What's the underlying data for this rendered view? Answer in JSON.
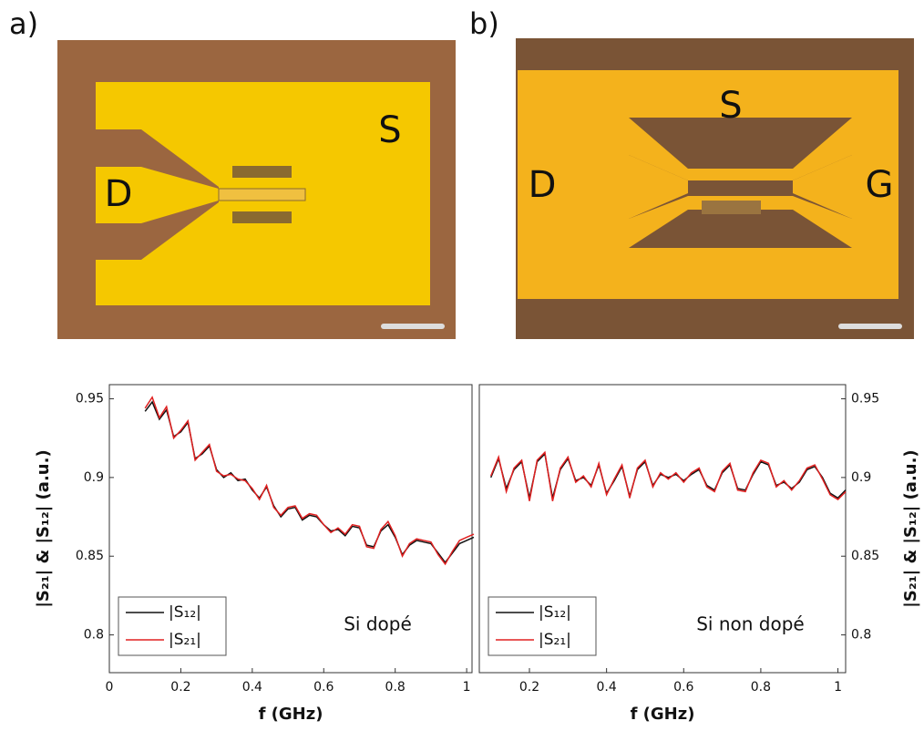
{
  "labels": {
    "panel_a": "a)",
    "panel_b": "b)",
    "a_source": "S",
    "a_drain": "D",
    "b_source": "S",
    "b_drain": "D",
    "b_gate": "G"
  },
  "chart_data": [
    {
      "type": "line",
      "annotation": "Si dopé",
      "xlabel": "f (GHz)",
      "ylabel": "|S₂₁| & |S₁₂| (a.u.)",
      "xlim": [
        0,
        1.015
      ],
      "ylim": [
        0.776,
        0.959
      ],
      "xticks": [
        0,
        0.2,
        0.4,
        0.6,
        0.8,
        1
      ],
      "yticks": [
        0.8,
        0.85,
        0.9,
        0.95
      ],
      "y_axis_side": "left",
      "legend": "lower left",
      "x": [
        0.1,
        0.12,
        0.14,
        0.16,
        0.18,
        0.2,
        0.22,
        0.24,
        0.26,
        0.28,
        0.3,
        0.32,
        0.34,
        0.36,
        0.38,
        0.4,
        0.42,
        0.44,
        0.46,
        0.48,
        0.5,
        0.52,
        0.54,
        0.56,
        0.58,
        0.6,
        0.62,
        0.64,
        0.66,
        0.68,
        0.7,
        0.72,
        0.74,
        0.76,
        0.78,
        0.8,
        0.82,
        0.84,
        0.86,
        0.88,
        0.9,
        0.92,
        0.94,
        0.96,
        0.98,
        1.0,
        1.02
      ],
      "series": [
        {
          "name": "|S₁₂|",
          "color": "#111111",
          "values": [
            0.942,
            0.948,
            0.937,
            0.943,
            0.926,
            0.929,
            0.935,
            0.912,
            0.915,
            0.92,
            0.905,
            0.9,
            0.903,
            0.898,
            0.899,
            0.892,
            0.887,
            0.894,
            0.882,
            0.875,
            0.88,
            0.881,
            0.873,
            0.876,
            0.875,
            0.87,
            0.866,
            0.867,
            0.863,
            0.869,
            0.868,
            0.857,
            0.856,
            0.866,
            0.87,
            0.862,
            0.851,
            0.857,
            0.86,
            0.859,
            0.858,
            0.852,
            0.846,
            0.852,
            0.858,
            0.86,
            0.862
          ]
        },
        {
          "name": "|S₂₁|",
          "color": "#e02020",
          "values": [
            0.944,
            0.951,
            0.938,
            0.945,
            0.925,
            0.93,
            0.936,
            0.911,
            0.916,
            0.921,
            0.904,
            0.901,
            0.902,
            0.899,
            0.898,
            0.893,
            0.886,
            0.895,
            0.881,
            0.876,
            0.881,
            0.882,
            0.874,
            0.877,
            0.876,
            0.87,
            0.865,
            0.868,
            0.864,
            0.87,
            0.869,
            0.856,
            0.855,
            0.867,
            0.872,
            0.863,
            0.85,
            0.858,
            0.861,
            0.86,
            0.859,
            0.851,
            0.845,
            0.853,
            0.86,
            0.862,
            0.864
          ]
        }
      ]
    },
    {
      "type": "line",
      "annotation": "Si non dopé",
      "xlabel": "f (GHz)",
      "ylabel": "|S₂₁| & |S₁₂| (a.u.)",
      "xlim": [
        0.07,
        1.02
      ],
      "ylim": [
        0.776,
        0.959
      ],
      "xticks": [
        0.2,
        0.4,
        0.6,
        0.8,
        1
      ],
      "yticks": [
        0.8,
        0.85,
        0.9,
        0.95
      ],
      "y_axis_side": "right",
      "legend": "lower left",
      "x": [
        0.1,
        0.12,
        0.14,
        0.16,
        0.18,
        0.2,
        0.22,
        0.24,
        0.26,
        0.28,
        0.3,
        0.32,
        0.34,
        0.36,
        0.38,
        0.4,
        0.42,
        0.44,
        0.46,
        0.48,
        0.5,
        0.52,
        0.54,
        0.56,
        0.58,
        0.6,
        0.62,
        0.64,
        0.66,
        0.68,
        0.7,
        0.72,
        0.74,
        0.76,
        0.78,
        0.8,
        0.82,
        0.84,
        0.86,
        0.88,
        0.9,
        0.92,
        0.94,
        0.96,
        0.98,
        1.0,
        1.02
      ],
      "series": [
        {
          "name": "|S₁₂|",
          "color": "#111111",
          "values": [
            0.9,
            0.912,
            0.893,
            0.905,
            0.91,
            0.887,
            0.91,
            0.915,
            0.887,
            0.905,
            0.912,
            0.898,
            0.9,
            0.895,
            0.908,
            0.89,
            0.898,
            0.907,
            0.888,
            0.905,
            0.91,
            0.895,
            0.902,
            0.9,
            0.902,
            0.898,
            0.902,
            0.905,
            0.895,
            0.892,
            0.903,
            0.908,
            0.893,
            0.892,
            0.902,
            0.91,
            0.908,
            0.895,
            0.897,
            0.893,
            0.897,
            0.905,
            0.907,
            0.9,
            0.89,
            0.887,
            0.892
          ]
        },
        {
          "name": "|S₂₁|",
          "color": "#e02020",
          "values": [
            0.901,
            0.913,
            0.891,
            0.906,
            0.911,
            0.885,
            0.911,
            0.916,
            0.885,
            0.906,
            0.913,
            0.897,
            0.901,
            0.894,
            0.909,
            0.889,
            0.899,
            0.908,
            0.887,
            0.906,
            0.911,
            0.894,
            0.903,
            0.899,
            0.903,
            0.897,
            0.903,
            0.906,
            0.894,
            0.891,
            0.904,
            0.909,
            0.892,
            0.891,
            0.903,
            0.911,
            0.909,
            0.894,
            0.898,
            0.892,
            0.898,
            0.906,
            0.908,
            0.899,
            0.889,
            0.886,
            0.891
          ]
        }
      ]
    }
  ]
}
